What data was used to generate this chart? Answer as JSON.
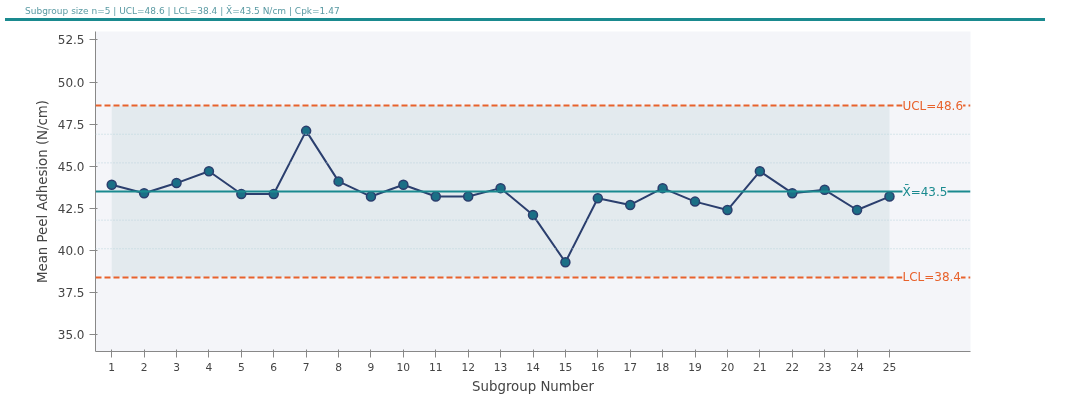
{
  "chart_data": {
    "type": "line",
    "subtitle": "Subgroup size n=5 | UCL=48.6 | LCL=38.4 | X̄=43.5 N/cm | Cpk=1.47",
    "xlabel": "Subgroup Number",
    "ylabel": "Mean Peel Adhesion (N/cm)",
    "x": [
      1,
      2,
      3,
      4,
      5,
      6,
      7,
      8,
      9,
      10,
      11,
      12,
      13,
      14,
      15,
      16,
      17,
      18,
      19,
      20,
      21,
      22,
      23,
      24,
      25
    ],
    "series": [
      {
        "color": "#2b3f6e",
        "values": [
          43.9,
          43.4,
          44.0,
          44.7,
          43.35,
          43.35,
          47.1,
          44.1,
          43.2,
          43.9,
          43.2,
          43.2,
          43.7,
          42.1,
          39.3,
          43.1,
          42.7,
          43.7,
          42.9,
          42.4,
          44.7,
          43.4,
          43.6,
          42.4,
          43.2
        ]
      }
    ],
    "marker": "circle",
    "line_style": "solid",
    "grid": false,
    "xlim": [
      0.5,
      27.5
    ],
    "ylim": [
      34.0,
      53.0
    ],
    "xticks": [
      1,
      2,
      3,
      4,
      5,
      6,
      7,
      8,
      9,
      10,
      11,
      12,
      13,
      14,
      15,
      16,
      17,
      18,
      19,
      20,
      21,
      22,
      23,
      24,
      25
    ],
    "yticks": [
      {
        "value": 35,
        "label": "35.0"
      },
      {
        "value": 37.5,
        "label": "37.5"
      },
      {
        "value": 40,
        "label": "40.0"
      },
      {
        "value": 42.5,
        "label": "42.5"
      },
      {
        "value": 45,
        "label": "45.0"
      },
      {
        "value": 47.5,
        "label": "47.5"
      },
      {
        "value": 50,
        "label": "50.0"
      },
      {
        "value": 52.5,
        "label": "52.5"
      }
    ],
    "ref_lines": [
      {
        "axis": "y",
        "value": 48.6,
        "label": "UCL=48.6",
        "color": "#e8622c",
        "line_style": "dashed"
      },
      {
        "axis": "y",
        "value": 43.5,
        "label": "X̄=43.5",
        "color": "#1a8a8f",
        "line_style": "solid"
      },
      {
        "axis": "y",
        "value": 38.4,
        "label": "LCL=38.4",
        "color": "#e8622c",
        "line_style": "dashed"
      },
      {
        "axis": "y",
        "value": 46.9,
        "label": null,
        "color": "#b9d3dc",
        "line_style": "dotted"
      },
      {
        "axis": "y",
        "value": 45.2,
        "label": null,
        "color": "#b9d3dc",
        "line_style": "dotted"
      },
      {
        "axis": "y",
        "value": 41.8,
        "label": null,
        "color": "#b9d3dc",
        "line_style": "dotted"
      },
      {
        "axis": "y",
        "value": 40.1,
        "label": null,
        "color": "#b9d3dc",
        "line_style": "dotted"
      }
    ],
    "bands": [
      {
        "axis": "y",
        "from": 38.4,
        "to": 48.6,
        "label": null,
        "color": "#e3eaee"
      }
    ]
  }
}
